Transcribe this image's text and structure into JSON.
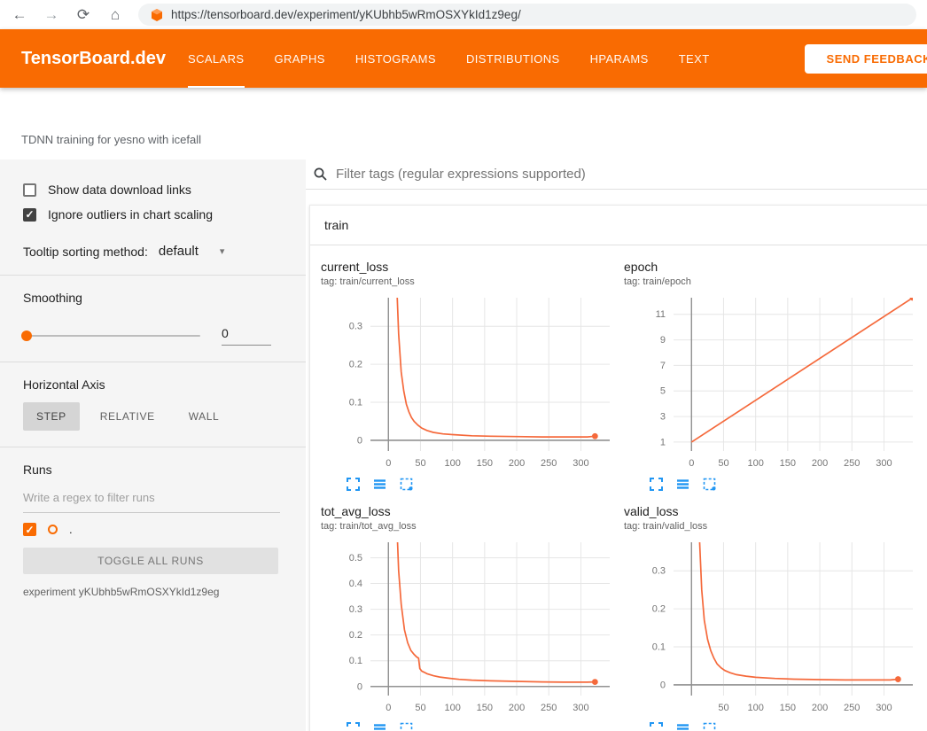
{
  "browser": {
    "url": "https://tensorboard.dev/experiment/yKUbhb5wRmOSXYkId1z9eg/"
  },
  "header": {
    "logo": "TensorBoard.dev",
    "tabs": [
      {
        "label": "SCALARS",
        "active": true
      },
      {
        "label": "GRAPHS",
        "active": false
      },
      {
        "label": "HISTOGRAMS",
        "active": false
      },
      {
        "label": "DISTRIBUTIONS",
        "active": false
      },
      {
        "label": "HPARAMS",
        "active": false
      },
      {
        "label": "TEXT",
        "active": false
      }
    ],
    "feedback_button": "SEND FEEDBACK"
  },
  "experiment": {
    "description": "TDNN training for yesno with icefall"
  },
  "sidebar": {
    "show_download_label": "Show data download links",
    "show_download_checked": false,
    "ignore_outliers_label": "Ignore outliers in chart scaling",
    "ignore_outliers_checked": true,
    "tooltip_sorting_label": "Tooltip sorting method:",
    "tooltip_sorting_value": "default",
    "smoothing_label": "Smoothing",
    "smoothing_value": "0",
    "horizontal_axis_label": "Horizontal Axis",
    "axis_options": [
      "STEP",
      "RELATIVE",
      "WALL"
    ],
    "axis_selected": "STEP",
    "runs_label": "Runs",
    "runs_filter_placeholder": "Write a regex to filter runs",
    "run_name": ".",
    "run_checked": true,
    "toggle_all_label": "TOGGLE ALL RUNS",
    "experiment_label": "experiment yKUbhb5wRmOSXYkId1z9eg"
  },
  "main": {
    "filter_placeholder": "Filter tags (regular expressions supported)",
    "section_title": "train",
    "chart_toolbar_icons": [
      "expand-chart-icon",
      "data-list-icon",
      "fit-domain-icon"
    ]
  },
  "colors": {
    "header_orange": "#f96b02",
    "run_color": "#f5693b",
    "icon_blue": "#2196f3",
    "active_tab_underline": "#ffffff"
  },
  "chart_data": [
    {
      "type": "line",
      "title": "current_loss",
      "tag": "tag: train/current_loss",
      "xlim": [
        -28,
        345
      ],
      "ylim": [
        -0.028,
        0.375
      ],
      "xticks": [
        0,
        50,
        100,
        150,
        200,
        250,
        300
      ],
      "yticks": [
        0,
        0.1,
        0.2,
        0.3
      ],
      "end_dot": true,
      "series": [
        {
          "name": ".",
          "points": [
            [
              3,
              3
            ],
            [
              8,
              0.9
            ],
            [
              12,
              0.45
            ],
            [
              16,
              0.28
            ],
            [
              20,
              0.18
            ],
            [
              24,
              0.13
            ],
            [
              28,
              0.095
            ],
            [
              32,
              0.075
            ],
            [
              36,
              0.06
            ],
            [
              40,
              0.05
            ],
            [
              46,
              0.04
            ],
            [
              52,
              0.032
            ],
            [
              60,
              0.026
            ],
            [
              70,
              0.021
            ],
            [
              85,
              0.017
            ],
            [
              100,
              0.015
            ],
            [
              130,
              0.012
            ],
            [
              160,
              0.011
            ],
            [
              200,
              0.01
            ],
            [
              240,
              0.009
            ],
            [
              280,
              0.009
            ],
            [
              310,
              0.009
            ],
            [
              322,
              0.011
            ]
          ]
        }
      ]
    },
    {
      "type": "line",
      "title": "epoch",
      "tag": "tag: train/epoch",
      "xlim": [
        -28,
        345
      ],
      "ylim": [
        0.3,
        12.3
      ],
      "xticks": [
        0,
        50,
        100,
        150,
        200,
        250,
        300
      ],
      "yticks": [
        1,
        3,
        5,
        7,
        9,
        11
      ],
      "end_dot": true,
      "series": [
        {
          "name": ".",
          "points": [
            [
              0,
              1
            ],
            [
              345,
              12.3
            ]
          ]
        }
      ]
    },
    {
      "type": "line",
      "title": "tot_avg_loss",
      "tag": "tag: train/tot_avg_loss",
      "xlim": [
        -28,
        345
      ],
      "ylim": [
        -0.035,
        0.56
      ],
      "xticks": [
        0,
        50,
        100,
        150,
        200,
        250,
        300
      ],
      "yticks": [
        0,
        0.1,
        0.2,
        0.3,
        0.4,
        0.5
      ],
      "end_dot": true,
      "series": [
        {
          "name": ".",
          "points": [
            [
              3,
              3
            ],
            [
              8,
              1.2
            ],
            [
              12,
              0.7
            ],
            [
              16,
              0.45
            ],
            [
              20,
              0.32
            ],
            [
              25,
              0.22
            ],
            [
              30,
              0.17
            ],
            [
              35,
              0.14
            ],
            [
              40,
              0.125
            ],
            [
              44,
              0.115
            ],
            [
              47,
              0.11
            ],
            [
              49,
              0.07
            ],
            [
              52,
              0.06
            ],
            [
              56,
              0.055
            ],
            [
              60,
              0.05
            ],
            [
              70,
              0.042
            ],
            [
              80,
              0.037
            ],
            [
              95,
              0.032
            ],
            [
              110,
              0.028
            ],
            [
              130,
              0.025
            ],
            [
              160,
              0.022
            ],
            [
              200,
              0.02
            ],
            [
              240,
              0.018
            ],
            [
              280,
              0.017
            ],
            [
              310,
              0.017
            ],
            [
              322,
              0.018
            ]
          ]
        }
      ]
    },
    {
      "type": "line",
      "title": "valid_loss",
      "tag": "tag: train/valid_loss",
      "xlim": [
        -28,
        345
      ],
      "ylim": [
        -0.028,
        0.375
      ],
      "xticks": [
        50,
        100,
        150,
        200,
        250,
        300
      ],
      "yticks": [
        0,
        0.1,
        0.2,
        0.3
      ],
      "end_dot": true,
      "series": [
        {
          "name": ".",
          "points": [
            [
              3,
              2
            ],
            [
              8,
              0.7
            ],
            [
              12,
              0.4
            ],
            [
              16,
              0.25
            ],
            [
              20,
              0.17
            ],
            [
              25,
              0.12
            ],
            [
              30,
              0.09
            ],
            [
              35,
              0.07
            ],
            [
              40,
              0.055
            ],
            [
              46,
              0.045
            ],
            [
              52,
              0.038
            ],
            [
              60,
              0.032
            ],
            [
              70,
              0.027
            ],
            [
              85,
              0.023
            ],
            [
              100,
              0.02
            ],
            [
              130,
              0.017
            ],
            [
              160,
              0.015
            ],
            [
              200,
              0.014
            ],
            [
              240,
              0.013
            ],
            [
              280,
              0.013
            ],
            [
              310,
              0.013
            ],
            [
              322,
              0.015
            ]
          ]
        }
      ]
    }
  ]
}
